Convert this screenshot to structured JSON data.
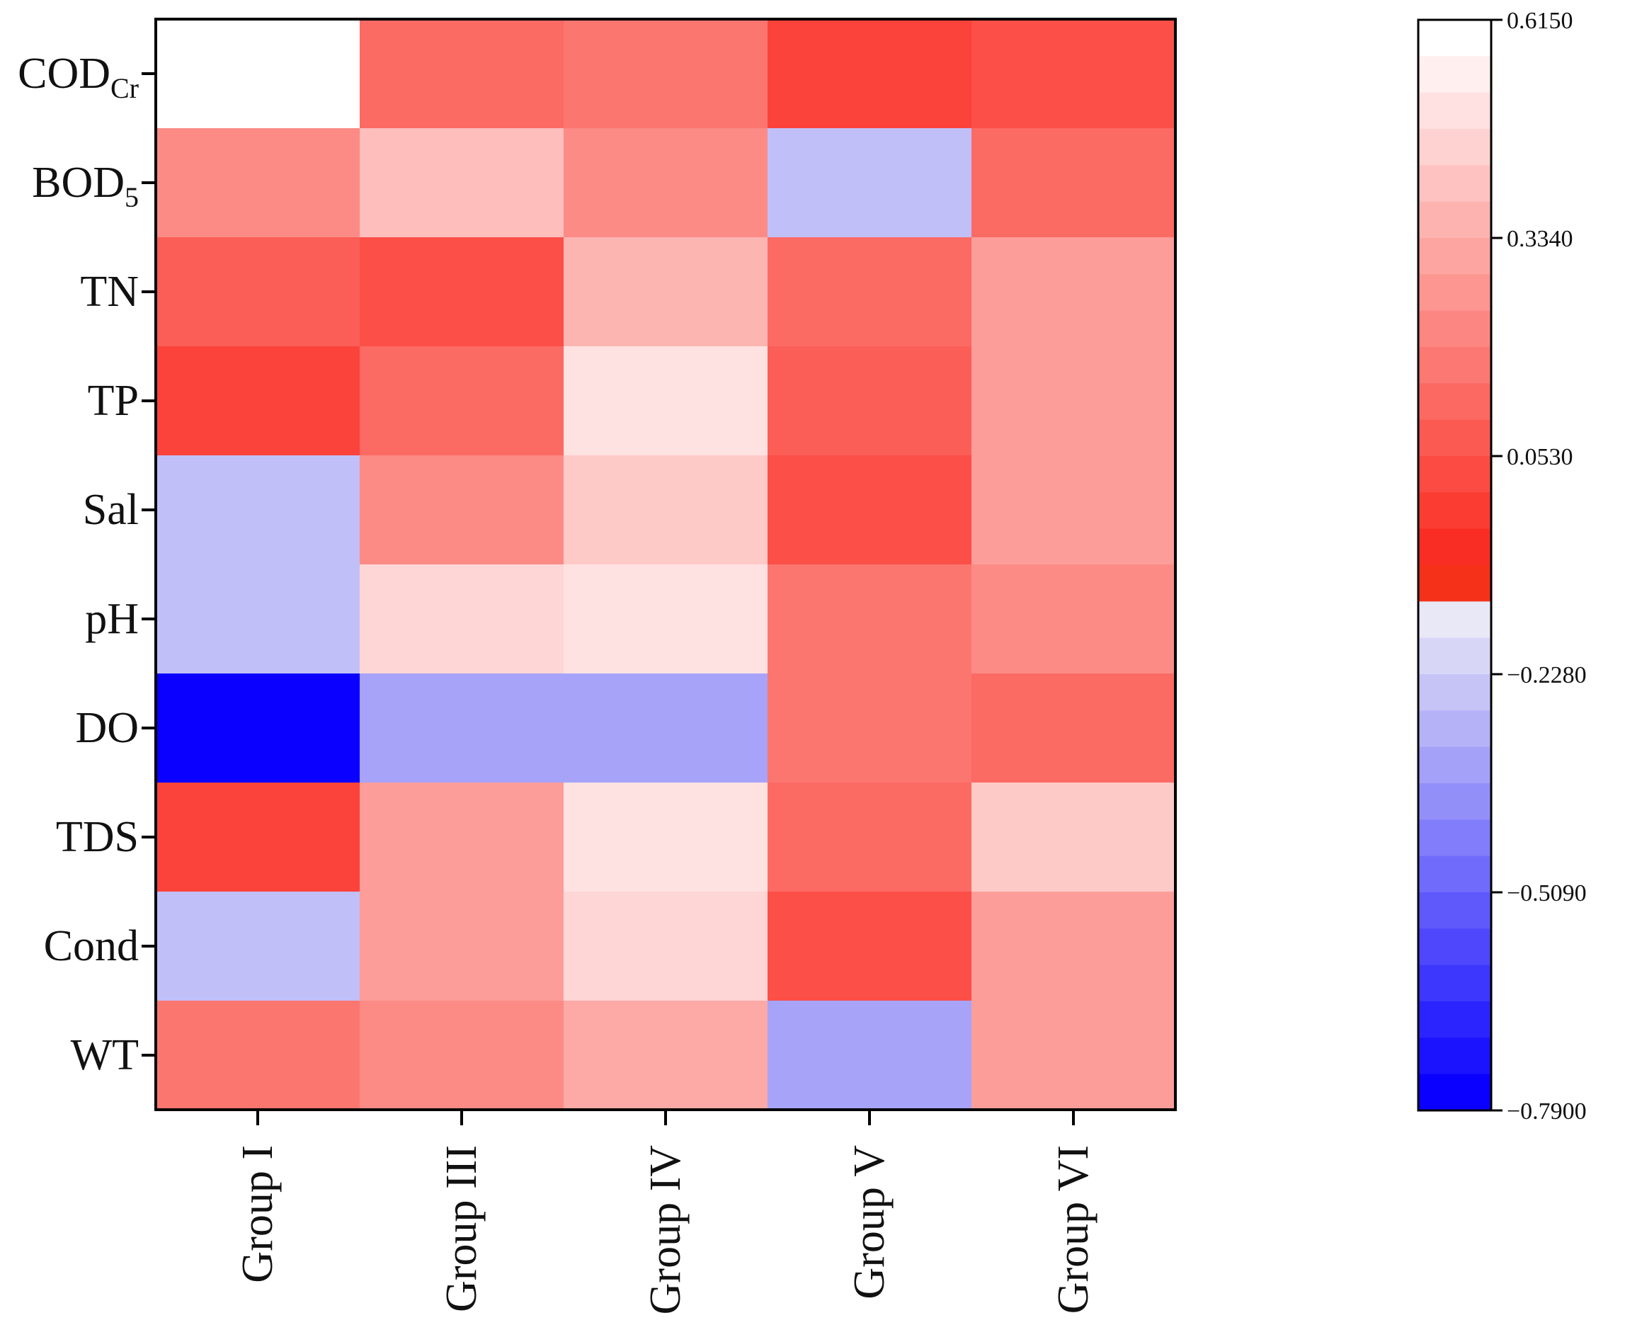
{
  "chart_data": {
    "type": "heatmap",
    "title": "",
    "rows": [
      {
        "label": "COD",
        "sub": "Cr"
      },
      {
        "label": "BOD",
        "sub": "5"
      },
      {
        "label": "TN",
        "sub": ""
      },
      {
        "label": "TP",
        "sub": ""
      },
      {
        "label": "Sal",
        "sub": ""
      },
      {
        "label": "pH",
        "sub": ""
      },
      {
        "label": "DO",
        "sub": ""
      },
      {
        "label": "TDS",
        "sub": ""
      },
      {
        "label": "Cond",
        "sub": ""
      },
      {
        "label": "WT",
        "sub": ""
      }
    ],
    "columns": [
      "Group I",
      "Group III",
      "Group IV",
      "Group V",
      "Group VI"
    ],
    "values": [
      [
        0.615,
        0.12,
        0.16,
        -0.01,
        0.03
      ],
      [
        0.23,
        0.4,
        0.23,
        -0.25,
        0.12
      ],
      [
        0.08,
        0.03,
        0.37,
        0.12,
        0.29
      ],
      [
        -0.01,
        0.12,
        0.52,
        0.08,
        0.29
      ],
      [
        -0.25,
        0.23,
        0.44,
        0.03,
        0.29
      ],
      [
        -0.25,
        0.48,
        0.52,
        0.16,
        0.23
      ],
      [
        -0.79,
        -0.33,
        -0.33,
        0.16,
        0.12
      ],
      [
        -0.01,
        0.29,
        0.52,
        0.12,
        0.44
      ],
      [
        -0.25,
        0.29,
        0.48,
        0.03,
        0.29
      ],
      [
        0.16,
        0.23,
        0.33,
        -0.33,
        0.29
      ]
    ],
    "colorbar": {
      "min": -0.79,
      "max": 0.615,
      "ticks": [
        0.615,
        0.334,
        0.053,
        -0.228,
        -0.509,
        -0.79
      ],
      "tick_labels": [
        "0.6150",
        "0.3340",
        "0.0530",
        "−0.2280",
        "−0.5090",
        "−0.7900"
      ],
      "red_steps": 16,
      "blue_steps": 14,
      "colors": {
        "white": "#ffffff",
        "red": "#fa1e14",
        "blue": "#0a00ff",
        "light_blue": "#e8e8f6",
        "orange_red": "#f53219"
      }
    }
  }
}
